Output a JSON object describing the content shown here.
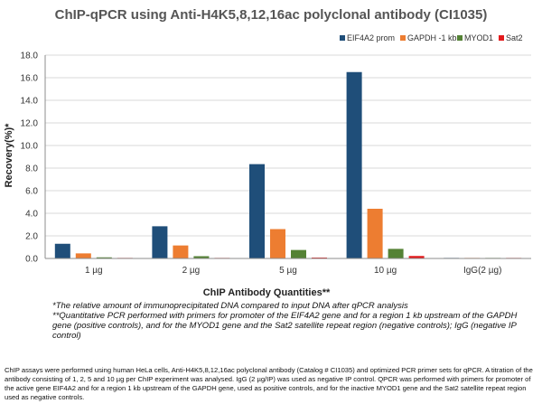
{
  "chart_data": {
    "type": "bar",
    "title": "ChIP-qPCR using Anti-H4K5,8,12,16ac polyclonal antibody (CI1035)",
    "xlabel": "ChIP Antibody Quantities**",
    "ylabel": "Recovery(%)*",
    "ylim": [
      0,
      18
    ],
    "yticks": [
      "0.0",
      "2.0",
      "4.0",
      "6.0",
      "8.0",
      "10.0",
      "12.0",
      "14.0",
      "16.0",
      "18.0"
    ],
    "grid": "horizontal",
    "legend_position": "top-right",
    "categories": [
      "1 µg",
      "2 µg",
      "5 µg",
      "10 µg",
      "IgG(2 µg)"
    ],
    "series": [
      {
        "name": "EIF4A2 prom",
        "color": "#1f4e79",
        "values": [
          1.3,
          2.85,
          8.35,
          16.5,
          0.05
        ]
      },
      {
        "name": "GAPDH -1 kb",
        "color": "#ed7d31",
        "values": [
          0.45,
          1.15,
          2.6,
          4.4,
          0.05
        ]
      },
      {
        "name": "MYOD1",
        "color": "#548235",
        "values": [
          0.1,
          0.2,
          0.75,
          0.85,
          0.05
        ]
      },
      {
        "name": "Sat2",
        "color": "#e31a1c",
        "values": [
          0.05,
          0.05,
          0.08,
          0.22,
          0.05
        ]
      }
    ]
  },
  "notes": [
    "*The relative amount of immunoprecipitated DNA compared to input DNA after qPCR analysis",
    "**Quantitative PCR performed with primers for promoter of the EIF4A2 gene and for a region 1 kb upstream of the GAPDH gene (positive controls), and for the MYOD1 gene and the Sat2 satellite repeat region (negative controls); IgG (negative IP control)"
  ],
  "caption": "ChIP assays were performed using human HeLa cells, Anti-H4K5,8,12,16ac polyclonal antibody (Catalog # CI1035) and optimized PCR primer sets for qPCR. A titration of the antibody consisting of 1, 2, 5 and 10 µg per ChIP experiment was analysed. IgG (2 µg/IP) was used as negative IP control. QPCR was performed with primers for promoter of the active gene EIF4A2 and for a region 1 kb upstream of the GAPDH gene, used as positive controls, and for the inactive MYOD1 gene and the Sat2 satellite repeat region used as negative controls."
}
